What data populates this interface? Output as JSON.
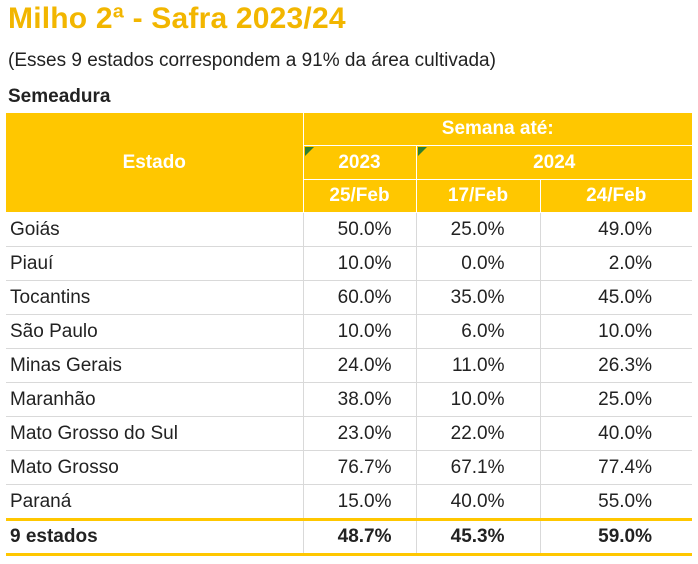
{
  "title": "Milho 2ª - Safra 2023/24",
  "subtitle": "(Esses 9 estados correspondem a 91% da área cultivada)",
  "section": "Semeadura",
  "colors": {
    "accent": "#FFC700",
    "title": "#F2B600",
    "marker": "#2F7F2F"
  },
  "table": {
    "header": {
      "estado": "Estado",
      "semana": "Semana até:",
      "year_2023": "2023",
      "year_2024": "2024",
      "dates": [
        "25/Feb",
        "17/Feb",
        "24/Feb"
      ]
    },
    "rows": [
      {
        "estado": "Goiás",
        "v": [
          "50.0%",
          "25.0%",
          "49.0%"
        ]
      },
      {
        "estado": "Piauí",
        "v": [
          "10.0%",
          "0.0%",
          "2.0%"
        ]
      },
      {
        "estado": "Tocantins",
        "v": [
          "60.0%",
          "35.0%",
          "45.0%"
        ]
      },
      {
        "estado": "São Paulo",
        "v": [
          "10.0%",
          "6.0%",
          "10.0%"
        ]
      },
      {
        "estado": "Minas Gerais",
        "v": [
          "24.0%",
          "11.0%",
          "26.3%"
        ]
      },
      {
        "estado": "Maranhão",
        "v": [
          "38.0%",
          "10.0%",
          "25.0%"
        ]
      },
      {
        "estado": "Mato Grosso do Sul",
        "v": [
          "23.0%",
          "22.0%",
          "40.0%"
        ]
      },
      {
        "estado": "Mato Grosso",
        "v": [
          "76.7%",
          "67.1%",
          "77.4%"
        ]
      },
      {
        "estado": "Paraná",
        "v": [
          "15.0%",
          "40.0%",
          "55.0%"
        ]
      }
    ],
    "total": {
      "estado": "9 estados",
      "v": [
        "48.7%",
        "45.3%",
        "59.0%"
      ]
    }
  }
}
